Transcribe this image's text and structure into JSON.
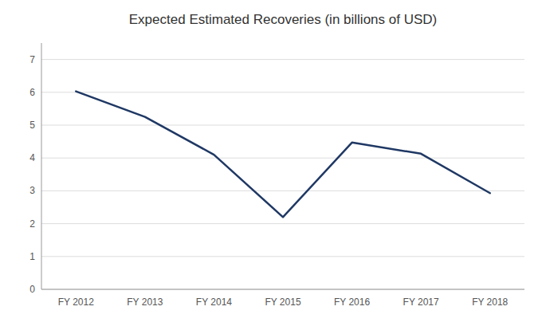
{
  "chart_data": {
    "type": "line",
    "title": "Expected Estimated Recoveries (in billions of USD)",
    "categories": [
      "FY 2012",
      "FY 2013",
      "FY 2014",
      "FY 2015",
      "FY 2016",
      "FY 2017",
      "FY 2018"
    ],
    "values": [
      6.03,
      5.25,
      4.1,
      2.2,
      4.47,
      4.13,
      2.93
    ],
    "color": "#1F3864",
    "ylim": [
      0,
      7.5
    ],
    "yticks": [
      0,
      1,
      2,
      3,
      4,
      5,
      6,
      7
    ],
    "grid": true
  }
}
